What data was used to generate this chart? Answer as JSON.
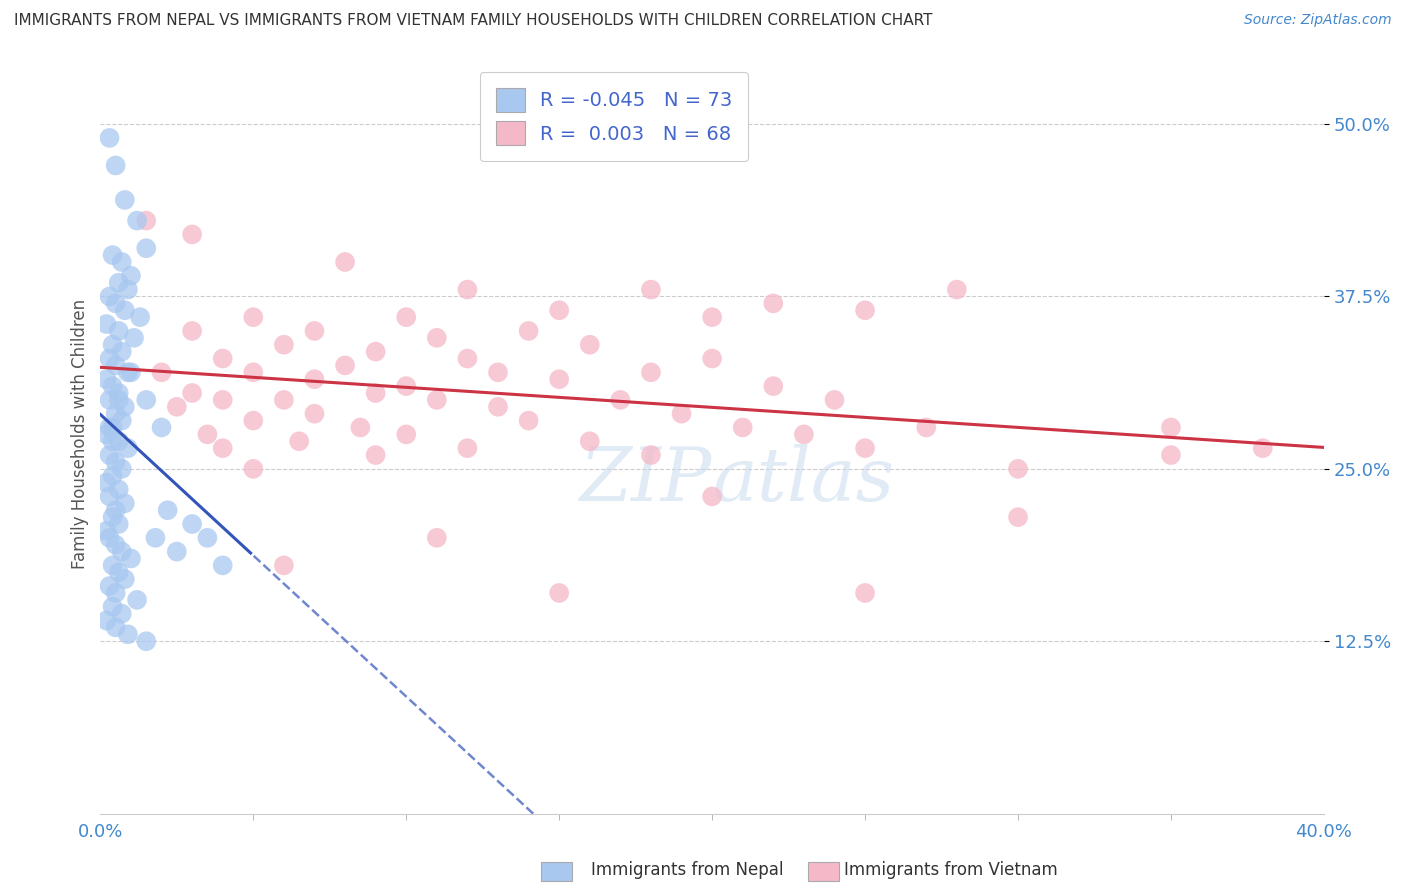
{
  "title": "IMMIGRANTS FROM NEPAL VS IMMIGRANTS FROM VIETNAM FAMILY HOUSEHOLDS WITH CHILDREN CORRELATION CHART",
  "source": "Source: ZipAtlas.com",
  "ylabel": "Family Households with Children",
  "xlim": [
    0.0,
    40.0
  ],
  "ylim": [
    0.0,
    55.0
  ],
  "yticks": [
    12.5,
    25.0,
    37.5,
    50.0
  ],
  "ytick_labels": [
    "12.5%",
    "25.0%",
    "37.5%",
    "50.0%"
  ],
  "xtick_left": "0.0%",
  "xtick_right": "40.0%",
  "background_color": "#ffffff",
  "grid_color": "#cccccc",
  "nepal_color": "#a8c8f0",
  "vietnam_color": "#f5b8c8",
  "nepal_line_color": "#3355bb",
  "vietnam_line_color": "#cc3344",
  "nepal_R": -0.045,
  "nepal_N": 73,
  "vietnam_R": 0.003,
  "vietnam_N": 68,
  "watermark": "ZIPatlas",
  "nepal_scatter": [
    [
      0.3,
      49.0
    ],
    [
      0.5,
      47.0
    ],
    [
      0.8,
      44.5
    ],
    [
      1.2,
      43.0
    ],
    [
      1.5,
      41.0
    ],
    [
      0.4,
      40.5
    ],
    [
      0.7,
      40.0
    ],
    [
      1.0,
      39.0
    ],
    [
      0.6,
      38.5
    ],
    [
      0.9,
      38.0
    ],
    [
      0.3,
      37.5
    ],
    [
      0.5,
      37.0
    ],
    [
      0.8,
      36.5
    ],
    [
      1.3,
      36.0
    ],
    [
      0.2,
      35.5
    ],
    [
      0.6,
      35.0
    ],
    [
      1.1,
      34.5
    ],
    [
      0.4,
      34.0
    ],
    [
      0.7,
      33.5
    ],
    [
      0.3,
      33.0
    ],
    [
      0.5,
      32.5
    ],
    [
      0.9,
      32.0
    ],
    [
      0.2,
      31.5
    ],
    [
      0.4,
      31.0
    ],
    [
      0.6,
      30.5
    ],
    [
      0.3,
      30.0
    ],
    [
      0.8,
      29.5
    ],
    [
      0.5,
      29.0
    ],
    [
      0.7,
      28.5
    ],
    [
      0.4,
      28.0
    ],
    [
      0.2,
      27.5
    ],
    [
      0.6,
      27.0
    ],
    [
      0.9,
      26.5
    ],
    [
      0.3,
      26.0
    ],
    [
      0.5,
      25.5
    ],
    [
      0.7,
      25.0
    ],
    [
      0.4,
      24.5
    ],
    [
      0.2,
      24.0
    ],
    [
      0.6,
      23.5
    ],
    [
      0.3,
      23.0
    ],
    [
      0.8,
      22.5
    ],
    [
      0.5,
      22.0
    ],
    [
      0.4,
      21.5
    ],
    [
      0.6,
      21.0
    ],
    [
      0.2,
      20.5
    ],
    [
      0.3,
      20.0
    ],
    [
      0.5,
      19.5
    ],
    [
      0.7,
      19.0
    ],
    [
      1.0,
      18.5
    ],
    [
      0.4,
      18.0
    ],
    [
      0.6,
      17.5
    ],
    [
      0.8,
      17.0
    ],
    [
      0.3,
      16.5
    ],
    [
      0.5,
      16.0
    ],
    [
      1.2,
      15.5
    ],
    [
      0.4,
      15.0
    ],
    [
      0.7,
      14.5
    ],
    [
      0.2,
      14.0
    ],
    [
      0.5,
      13.5
    ],
    [
      0.9,
      13.0
    ],
    [
      1.5,
      12.5
    ],
    [
      0.3,
      28.0
    ],
    [
      0.6,
      30.0
    ],
    [
      0.4,
      27.0
    ],
    [
      1.8,
      20.0
    ],
    [
      2.2,
      22.0
    ],
    [
      3.0,
      21.0
    ],
    [
      2.5,
      19.0
    ],
    [
      3.5,
      20.0
    ],
    [
      4.0,
      18.0
    ],
    [
      1.0,
      32.0
    ],
    [
      1.5,
      30.0
    ],
    [
      2.0,
      28.0
    ]
  ],
  "vietnam_scatter": [
    [
      1.5,
      43.0
    ],
    [
      3.0,
      42.0
    ],
    [
      8.0,
      40.0
    ],
    [
      12.0,
      38.0
    ],
    [
      18.0,
      38.0
    ],
    [
      22.0,
      37.0
    ],
    [
      28.0,
      38.0
    ],
    [
      5.0,
      36.0
    ],
    [
      10.0,
      36.0
    ],
    [
      15.0,
      36.5
    ],
    [
      20.0,
      36.0
    ],
    [
      25.0,
      36.5
    ],
    [
      3.0,
      35.0
    ],
    [
      7.0,
      35.0
    ],
    [
      11.0,
      34.5
    ],
    [
      14.0,
      35.0
    ],
    [
      6.0,
      34.0
    ],
    [
      9.0,
      33.5
    ],
    [
      16.0,
      34.0
    ],
    [
      4.0,
      33.0
    ],
    [
      12.0,
      33.0
    ],
    [
      8.0,
      32.5
    ],
    [
      20.0,
      33.0
    ],
    [
      2.0,
      32.0
    ],
    [
      5.0,
      32.0
    ],
    [
      13.0,
      32.0
    ],
    [
      18.0,
      32.0
    ],
    [
      7.0,
      31.5
    ],
    [
      10.0,
      31.0
    ],
    [
      15.0,
      31.5
    ],
    [
      22.0,
      31.0
    ],
    [
      3.0,
      30.5
    ],
    [
      6.0,
      30.0
    ],
    [
      9.0,
      30.5
    ],
    [
      4.0,
      30.0
    ],
    [
      11.0,
      30.0
    ],
    [
      17.0,
      30.0
    ],
    [
      24.0,
      30.0
    ],
    [
      2.5,
      29.5
    ],
    [
      7.0,
      29.0
    ],
    [
      13.0,
      29.5
    ],
    [
      19.0,
      29.0
    ],
    [
      5.0,
      28.5
    ],
    [
      8.5,
      28.0
    ],
    [
      14.0,
      28.5
    ],
    [
      21.0,
      28.0
    ],
    [
      27.0,
      28.0
    ],
    [
      3.5,
      27.5
    ],
    [
      6.5,
      27.0
    ],
    [
      10.0,
      27.5
    ],
    [
      16.0,
      27.0
    ],
    [
      23.0,
      27.5
    ],
    [
      4.0,
      26.5
    ],
    [
      9.0,
      26.0
    ],
    [
      12.0,
      26.5
    ],
    [
      18.0,
      26.0
    ],
    [
      25.0,
      26.5
    ],
    [
      35.0,
      26.0
    ],
    [
      5.0,
      25.0
    ],
    [
      30.0,
      25.0
    ],
    [
      20.0,
      23.0
    ],
    [
      30.0,
      21.5
    ],
    [
      11.0,
      20.0
    ],
    [
      6.0,
      18.0
    ],
    [
      15.0,
      16.0
    ],
    [
      25.0,
      16.0
    ],
    [
      35.0,
      28.0
    ],
    [
      38.0,
      26.5
    ]
  ]
}
